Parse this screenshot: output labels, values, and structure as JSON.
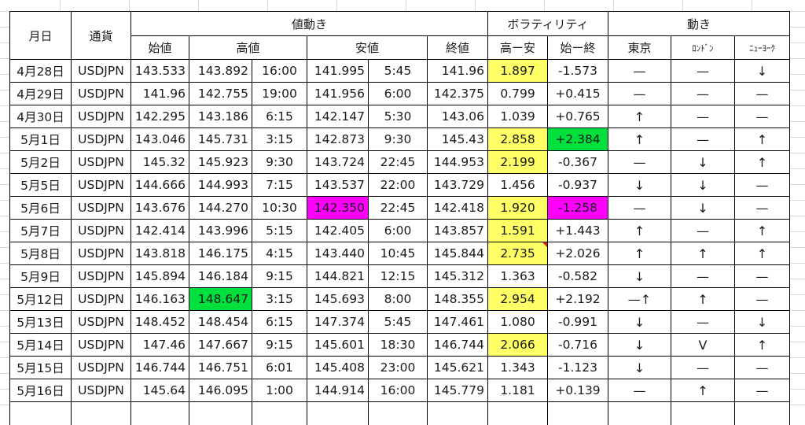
{
  "headers": {
    "date": "月日",
    "currency": "通貨",
    "price_move": "値動き",
    "volatility": "ボラティリティ",
    "movement": "動き",
    "open": "始値",
    "high": "高値",
    "low": "安値",
    "close": "終値",
    "high_low": "高ー安",
    "open_close": "始ー終",
    "tokyo": "東京",
    "london": "ﾛﾝﾄﾞﾝ",
    "newyork": "ﾆｭｰﾖｰｸ"
  },
  "highlight_colors": {
    "yellow": "#ffff66",
    "green": "#00e03c",
    "magenta": "#ff00ff"
  },
  "rows": [
    {
      "date": "4月28日",
      "currency": "USDJPN",
      "open": "143.533",
      "high": "143.892",
      "high_time": "16:00",
      "low": "141.995",
      "low_time": "5:45",
      "close": "141.96",
      "hl": "1.897",
      "oc": "-1.573",
      "tokyo": "—",
      "london": "—",
      "ny": "↓"
    },
    {
      "date": "4月29日",
      "currency": "USDJPN",
      "open": "141.96",
      "high": "142.755",
      "high_time": "19:00",
      "low": "141.956",
      "low_time": "6:00",
      "close": "142.375",
      "hl": "0.799",
      "oc": "+0.415",
      "tokyo": "—",
      "london": "—",
      "ny": "—"
    },
    {
      "date": "4月30日",
      "currency": "USDJPN",
      "open": "142.295",
      "high": "143.186",
      "high_time": "6:15",
      "low": "142.147",
      "low_time": "5:30",
      "close": "143.06",
      "hl": "1.039",
      "oc": "+0.765",
      "tokyo": "↑",
      "london": "—",
      "ny": "—"
    },
    {
      "date": "5月1日",
      "currency": "USDJPN",
      "open": "143.046",
      "high": "145.731",
      "high_time": "3:15",
      "low": "142.873",
      "low_time": "9:30",
      "close": "145.43",
      "hl": "2.858",
      "oc": "+2.384",
      "tokyo": "↑",
      "london": "—",
      "ny": "↑"
    },
    {
      "date": "5月2日",
      "currency": "USDJPN",
      "open": "145.32",
      "high": "145.923",
      "high_time": "9:30",
      "low": "143.724",
      "low_time": "22:45",
      "close": "144.953",
      "hl": "2.199",
      "oc": "-0.367",
      "tokyo": "—",
      "london": "↓",
      "ny": "↑"
    },
    {
      "date": "5月5日",
      "currency": "USDJPN",
      "open": "144.666",
      "high": "144.993",
      "high_time": "7:15",
      "low": "143.537",
      "low_time": "22:00",
      "close": "143.729",
      "hl": "1.456",
      "oc": "-0.937",
      "tokyo": "↓",
      "london": "↓",
      "ny": "—"
    },
    {
      "date": "5月6日",
      "currency": "USDJPN",
      "open": "143.676",
      "high": "144.270",
      "high_time": "10:30",
      "low": "142.350",
      "low_time": "22:45",
      "close": "142.418",
      "hl": "1.920",
      "oc": "-1.258",
      "tokyo": "—",
      "london": "↓",
      "ny": "—"
    },
    {
      "date": "5月7日",
      "currency": "USDJPN",
      "open": "142.414",
      "high": "143.996",
      "high_time": "5:15",
      "low": "142.405",
      "low_time": "6:00",
      "close": "143.857",
      "hl": "1.591",
      "oc": "+1.443",
      "tokyo": "↑",
      "london": "—",
      "ny": "↑"
    },
    {
      "date": "5月8日",
      "currency": "USDJPN",
      "open": "143.818",
      "high": "146.175",
      "high_time": "4:15",
      "low": "143.440",
      "low_time": "10:45",
      "close": "145.844",
      "hl": "2.735",
      "oc": "+2.026",
      "tokyo": "↑",
      "london": "↑",
      "ny": "↑"
    },
    {
      "date": "5月9日",
      "currency": "USDJPN",
      "open": "145.894",
      "high": "146.184",
      "high_time": "9:15",
      "low": "144.821",
      "low_time": "12:15",
      "close": "145.312",
      "hl": "1.363",
      "oc": "-0.582",
      "tokyo": "↓",
      "london": "—",
      "ny": "—"
    },
    {
      "date": "5月12日",
      "currency": "USDJPN",
      "open": "146.163",
      "high": "148.647",
      "high_time": "3:15",
      "low": "145.693",
      "low_time": "8:00",
      "close": "148.355",
      "hl": "2.954",
      "oc": "+2.192",
      "tokyo": "—↑",
      "london": "↑",
      "ny": "—"
    },
    {
      "date": "5月13日",
      "currency": "USDJPN",
      "open": "148.452",
      "high": "148.454",
      "high_time": "6:15",
      "low": "147.374",
      "low_time": "5:45",
      "close": "147.461",
      "hl": "1.080",
      "oc": "-0.991",
      "tokyo": "↓",
      "london": "—",
      "ny": "↓"
    },
    {
      "date": "5月14日",
      "currency": "USDJPN",
      "open": "147.46",
      "high": "147.667",
      "high_time": "9:15",
      "low": "145.601",
      "low_time": "18:30",
      "close": "146.744",
      "hl": "2.066",
      "oc": "-0.716",
      "tokyo": "↓",
      "london": "V",
      "ny": "↑"
    },
    {
      "date": "5月15日",
      "currency": "USDJPN",
      "open": "146.744",
      "high": "146.751",
      "high_time": "6:01",
      "low": "145.408",
      "low_time": "23:00",
      "close": "145.621",
      "hl": "1.343",
      "oc": "-1.123",
      "tokyo": "↓",
      "london": "—",
      "ny": "—"
    },
    {
      "date": "5月16日",
      "currency": "USDJPN",
      "open": "145.64",
      "high": "146.095",
      "high_time": "1:00",
      "low": "144.914",
      "low_time": "16:00",
      "close": "145.779",
      "hl": "1.181",
      "oc": "+0.139",
      "tokyo": "—",
      "london": "↑",
      "ny": "—"
    }
  ]
}
